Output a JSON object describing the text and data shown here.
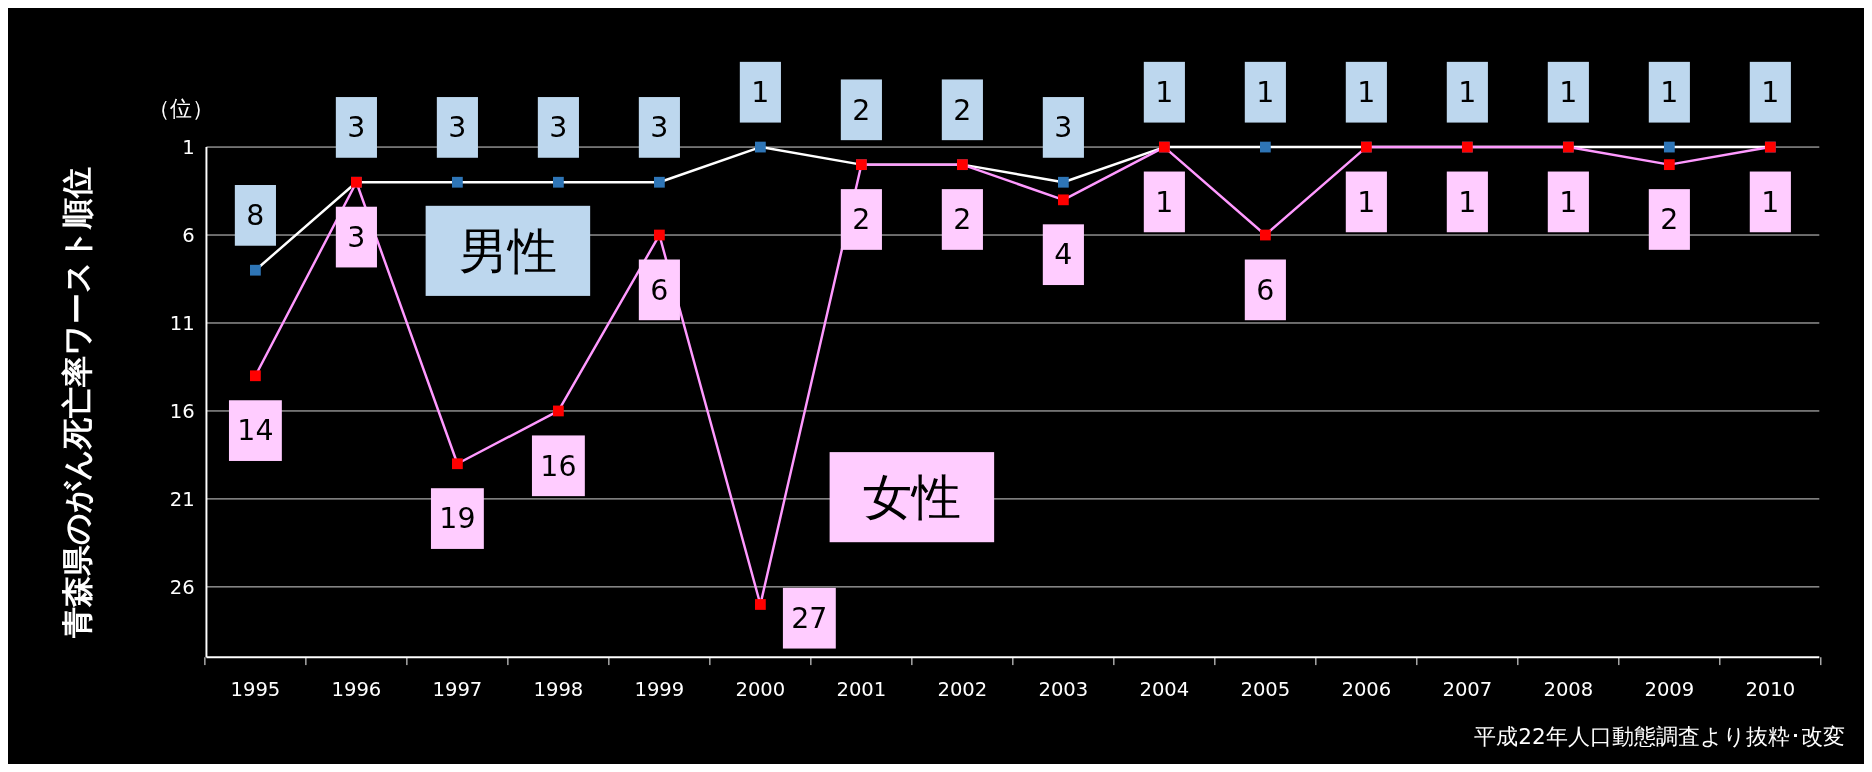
{
  "chart_data": {
    "type": "line",
    "ylabel": "青森県のがん死亡率ワースト順位",
    "categories": [
      "1995",
      "1996",
      "1997",
      "1998",
      "1999",
      "2000",
      "2001",
      "2002",
      "2003",
      "2004",
      "2005",
      "2006",
      "2007",
      "2008",
      "2009",
      "2010"
    ],
    "series": [
      {
        "name": "男性",
        "color": "#ffffff",
        "colors": [
          "#2e75b6",
          "#2e75b6",
          "#2e75b6",
          "#2e75b6",
          "#2e75b6",
          "#2e75b6",
          "#2e75b6",
          "#2e75b6",
          "#2e75b6",
          "#2e75b6",
          "#2e75b6",
          "#2e75b6",
          "#2e75b6",
          "#2e75b6",
          "#2e75b6",
          "#2e75b6"
        ],
        "values": [
          8,
          3,
          3,
          3,
          3,
          1,
          2,
          2,
          3,
          1,
          1,
          1,
          1,
          1,
          1,
          1
        ]
      },
      {
        "name": "女性",
        "color": "#ff99ff",
        "colors": [
          "#ff0000",
          "#ff0000",
          "#ff0000",
          "#ff0000",
          "#ff0000",
          "#ff0000",
          "#ff0000",
          "#ff0000",
          "#ff0000",
          "#ff0000",
          "#ff0000",
          "#ff0000",
          "#ff0000",
          "#ff0000",
          "#ff0000",
          "#ff0000"
        ],
        "values": [
          14,
          3,
          19,
          16,
          6,
          27,
          2,
          2,
          4,
          1,
          6,
          1,
          1,
          1,
          2,
          1
        ]
      }
    ],
    "ylim": [
      30,
      1
    ],
    "yticks": [
      1,
      6,
      11,
      16,
      21,
      26
    ],
    "grid": "y",
    "legend": false,
    "marker": "square",
    "data_labels": true,
    "annotations": [
      "（位）",
      "平成22年人口動態調査より抜粋･改変"
    ]
  }
}
